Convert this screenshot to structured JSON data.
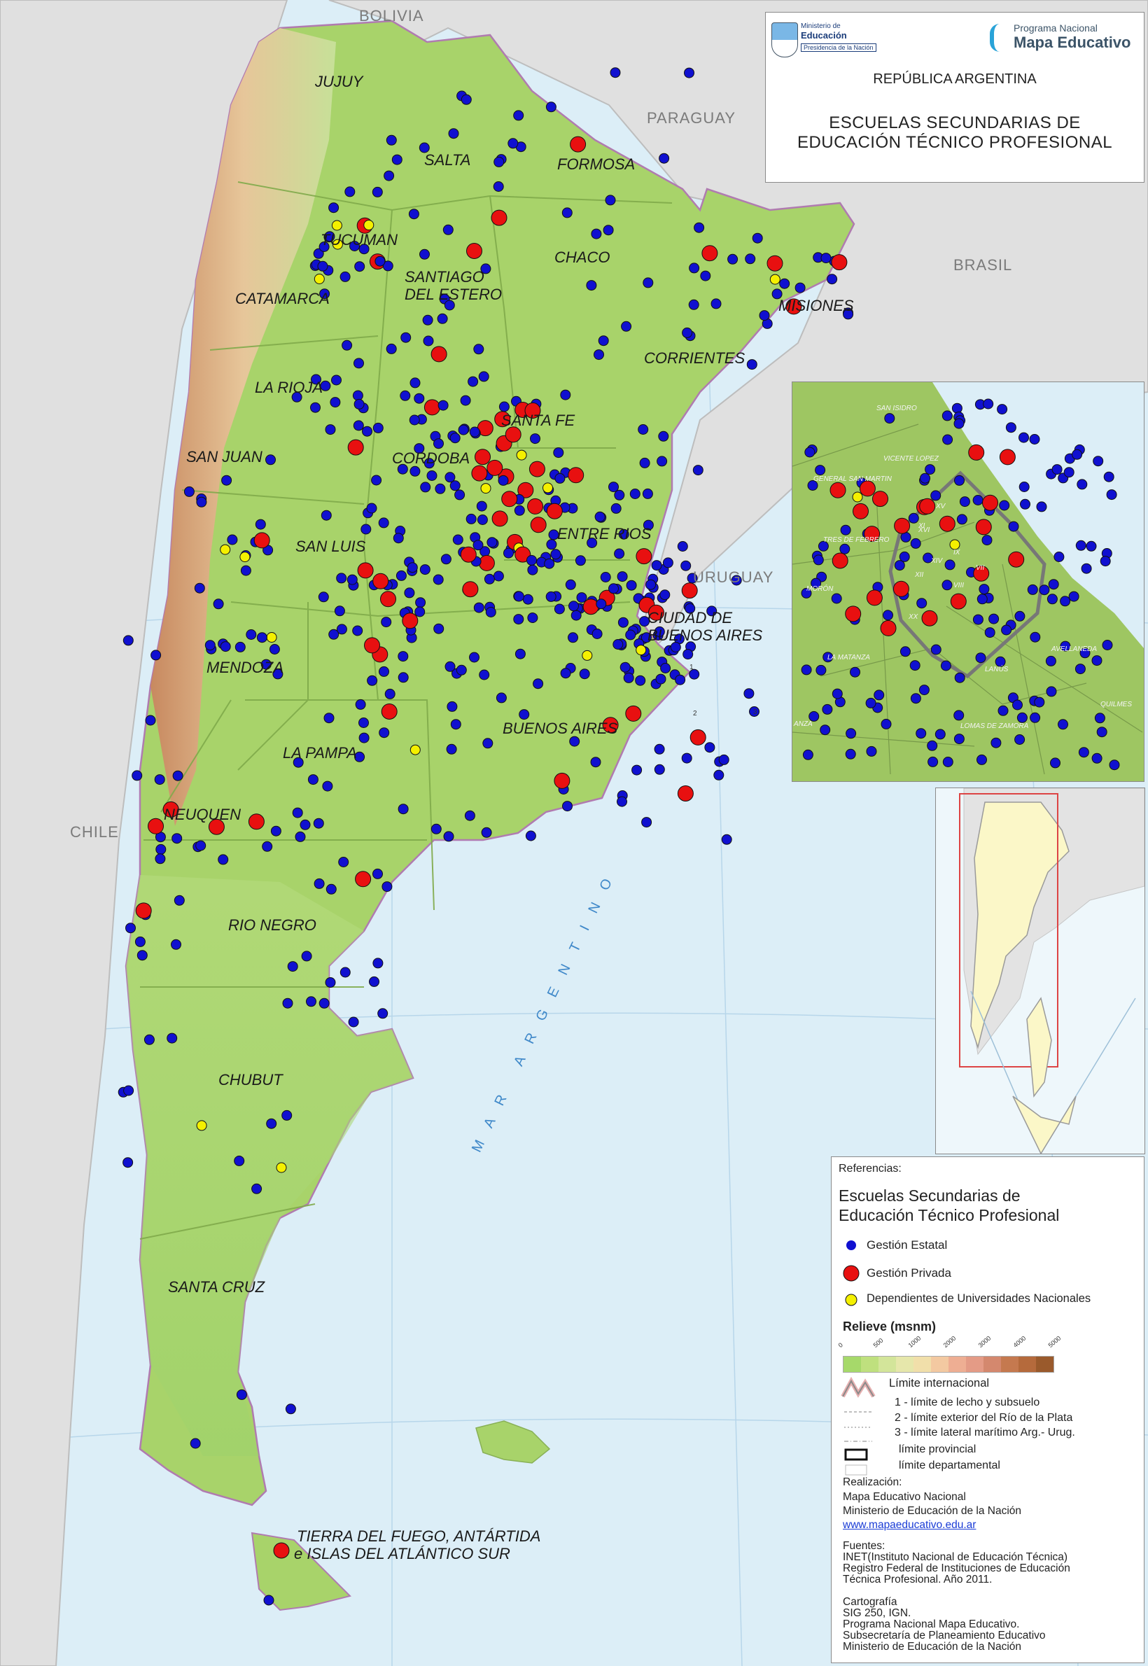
{
  "header": {
    "ministry_logo_text": [
      "Ministerio de",
      "Educación",
      "Presidencia de la Nación"
    ],
    "program_logo_line1": "Programa Nacional",
    "program_logo_line2": "Mapa Educativo",
    "country": "REPÚBLICA ARGENTINA",
    "title_line1": "ESCUELAS SECUNDARIAS DE",
    "title_line2": "EDUCACIÓN TÉCNICO PROFESIONAL"
  },
  "countries": [
    "BOLIVIA",
    "PARAGUAY",
    "BRASIL",
    "URUGUAY",
    "CHILE"
  ],
  "sea_label": "MAR ARGENTINO",
  "provinces": [
    "JUJUY",
    "SALTA",
    "FORMOSA",
    "TUCUMAN",
    "CHACO",
    "SANTIAGO",
    "DEL ESTERO",
    "CATAMARCA",
    "MISIONES",
    "CORRIENTES",
    "LA RIOJA",
    "SANTA FE",
    "SAN JUAN",
    "CORDOBA",
    "ENTRE RIOS",
    "SAN LUIS",
    "CIUDAD DE",
    "BUENOS AIRES",
    "MENDOZA",
    "BUENOS AIRES",
    "LA PAMPA",
    "NEUQUEN",
    "RIO NEGRO",
    "CHUBUT",
    "SANTA CRUZ",
    "TIERRA DEL FUEGO, ANTÁRTIDA",
    "e ISLAS DEL ATLÁNTICO SUR"
  ],
  "boundary_markers": [
    "1",
    "2",
    "3"
  ],
  "inset_labels": [
    "SAN ISIDRO",
    "VICENTE LOPEZ",
    "GENERAL SAN MARTIN",
    "XV",
    "XI",
    "TRES DE FEBRERO",
    "XVI",
    "IX",
    "XIV",
    "VII",
    "XII",
    "VIII",
    "MORÓN",
    "XX",
    "LA MATANZA",
    "LANÚS",
    "AVELLANEDA",
    "QUILMES",
    "LOMAS DE ZAMORA",
    "ANZA"
  ],
  "legend": {
    "header": "Referencias:",
    "title_line1": "Escuelas Secundarias de",
    "title_line2": "Educación Técnico Profesional",
    "items": [
      {
        "label": "Gestión Estatal",
        "color": "#1010d0"
      },
      {
        "label": "Gestión Privada",
        "color": "#e81010"
      },
      {
        "label": "Dependientes de Universidades Nacionales",
        "color": "#f4f000"
      }
    ],
    "relief_title": "Relieve (msnm)",
    "relief_ticks": [
      "0",
      "500",
      "1000",
      "2000",
      "3000",
      "4000",
      "5000"
    ],
    "relief_colors": [
      "#a6d96a",
      "#bfe07e",
      "#d3e59a",
      "#e6e7ab",
      "#f1dfaa",
      "#f3c9a1",
      "#eeae93",
      "#e49b86",
      "#d4886e",
      "#c5794f",
      "#b56a3c",
      "#9a5a2c"
    ],
    "limits": [
      "Límite internacional",
      "1 - límite de lecho y subsuelo",
      "2 - límite exterior del Río de la Plata",
      "3 - límite lateral marítimo Arg.- Urug.",
      "límite provincial",
      "límite departamental"
    ],
    "realizacion_title": "Realización:",
    "realizacion": [
      "Mapa Educativo Nacional",
      "Ministerio de Educación de la Nación"
    ],
    "website": "www.mapaeducativo.edu.ar",
    "fuentes_title": "Fuentes:",
    "fuentes": [
      "INET(Instituto Nacional de Educación Técnica)",
      "Registro Federal de Instituciones de Educación",
      "Técnica Profesional. Año 2011."
    ],
    "cartografia_title": "Cartografía",
    "cartografia": [
      "SIG 250, IGN.",
      "Programa Nacional Mapa Educativo.",
      "Subsecretaría de Planeamiento Educativo",
      "Ministerio de Educación de la Nación"
    ]
  },
  "colors": {
    "state": "#1010d0",
    "private": "#e81010",
    "university": "#f4f000",
    "lowland": "#a8d36a",
    "water": "#dceef7",
    "neighbor": "#dcdcdc"
  }
}
